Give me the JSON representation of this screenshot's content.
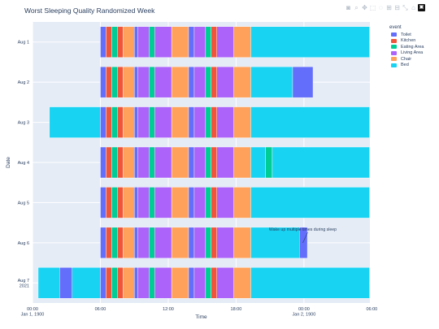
{
  "chart_data": {
    "type": "bar",
    "orientation": "horizontal-timeline",
    "title": "Worst Sleeping Quality Randomized Week",
    "xlabel": "Time",
    "ylabel": "Date",
    "xlim": [
      0,
      29.83
    ],
    "x_ticks": [
      {
        "value": 0,
        "label": "00:00",
        "sublabel": "Jan 1, 1900"
      },
      {
        "value": 6,
        "label": "06:00",
        "sublabel": ""
      },
      {
        "value": 12,
        "label": "12:00",
        "sublabel": ""
      },
      {
        "value": 18,
        "label": "18:00",
        "sublabel": ""
      },
      {
        "value": 24,
        "label": "00:00",
        "sublabel": "Jan 2, 1900"
      },
      {
        "value": 30,
        "label": "06:00",
        "sublabel": ""
      }
    ],
    "categories": [
      {
        "label": "Aug 1",
        "sublabel": ""
      },
      {
        "label": "Aug 2",
        "sublabel": ""
      },
      {
        "label": "Aug 3",
        "sublabel": ""
      },
      {
        "label": "Aug 4",
        "sublabel": ""
      },
      {
        "label": "Aug 5",
        "sublabel": ""
      },
      {
        "label": "Aug 6",
        "sublabel": ""
      },
      {
        "label": "Aug 7",
        "sublabel": "2021"
      }
    ],
    "legend": {
      "title": "event",
      "position": "top-right",
      "entries": [
        {
          "name": "Toilet",
          "color": "#636efa"
        },
        {
          "name": "Kitchen",
          "color": "#ef553b"
        },
        {
          "name": "Eating Area",
          "color": "#00cc96"
        },
        {
          "name": "Living Area",
          "color": "#ab63fa"
        },
        {
          "name": "Chair",
          "color": "#ffa15a"
        },
        {
          "name": "Bed",
          "color": "#19d3f3"
        }
      ]
    },
    "grid": true,
    "rows": [
      {
        "segments": [
          {
            "event": "Toilet",
            "start": 6.0,
            "end": 6.5
          },
          {
            "event": "Kitchen",
            "start": 6.5,
            "end": 7.0
          },
          {
            "event": "Eating Area",
            "start": 7.0,
            "end": 7.5
          },
          {
            "event": "Kitchen",
            "start": 7.5,
            "end": 8.0
          },
          {
            "event": "Chair",
            "start": 8.0,
            "end": 9.0
          },
          {
            "event": "Toilet",
            "start": 9.0,
            "end": 9.3
          },
          {
            "event": "Living Area",
            "start": 9.3,
            "end": 10.3
          },
          {
            "event": "Eating Area",
            "start": 10.3,
            "end": 10.8
          },
          {
            "event": "Living Area",
            "start": 10.8,
            "end": 12.3
          },
          {
            "event": "Chair",
            "start": 12.3,
            "end": 13.8
          },
          {
            "event": "Toilet",
            "start": 13.8,
            "end": 14.3
          },
          {
            "event": "Living Area",
            "start": 14.3,
            "end": 15.3
          },
          {
            "event": "Eating Area",
            "start": 15.3,
            "end": 15.8
          },
          {
            "event": "Kitchen",
            "start": 15.8,
            "end": 16.3
          },
          {
            "event": "Living Area",
            "start": 16.3,
            "end": 17.8
          },
          {
            "event": "Chair",
            "start": 17.8,
            "end": 19.3
          },
          {
            "event": "Bed",
            "start": 19.3,
            "end": 29.8
          }
        ]
      },
      {
        "segments": [
          {
            "event": "Toilet",
            "start": 6.0,
            "end": 6.5
          },
          {
            "event": "Kitchen",
            "start": 6.5,
            "end": 7.0
          },
          {
            "event": "Eating Area",
            "start": 7.0,
            "end": 7.5
          },
          {
            "event": "Kitchen",
            "start": 7.5,
            "end": 8.0
          },
          {
            "event": "Chair",
            "start": 8.0,
            "end": 9.0
          },
          {
            "event": "Toilet",
            "start": 9.0,
            "end": 9.3
          },
          {
            "event": "Living Area",
            "start": 9.3,
            "end": 10.3
          },
          {
            "event": "Eating Area",
            "start": 10.3,
            "end": 10.8
          },
          {
            "event": "Living Area",
            "start": 10.8,
            "end": 12.3
          },
          {
            "event": "Chair",
            "start": 12.3,
            "end": 13.8
          },
          {
            "event": "Toilet",
            "start": 13.8,
            "end": 14.3
          },
          {
            "event": "Living Area",
            "start": 14.3,
            "end": 15.3
          },
          {
            "event": "Eating Area",
            "start": 15.3,
            "end": 15.8
          },
          {
            "event": "Kitchen",
            "start": 15.8,
            "end": 16.3
          },
          {
            "event": "Living Area",
            "start": 16.3,
            "end": 17.8
          },
          {
            "event": "Chair",
            "start": 17.8,
            "end": 19.3
          },
          {
            "event": "Bed",
            "start": 19.3,
            "end": 23.0
          },
          {
            "event": "Toilet",
            "start": 23.0,
            "end": 24.8
          }
        ]
      },
      {
        "segments": [
          {
            "event": "Bed",
            "start": 1.5,
            "end": 6.0
          },
          {
            "event": "Toilet",
            "start": 6.0,
            "end": 6.5
          },
          {
            "event": "Kitchen",
            "start": 6.5,
            "end": 7.0
          },
          {
            "event": "Eating Area",
            "start": 7.0,
            "end": 7.5
          },
          {
            "event": "Kitchen",
            "start": 7.5,
            "end": 8.0
          },
          {
            "event": "Chair",
            "start": 8.0,
            "end": 9.0
          },
          {
            "event": "Toilet",
            "start": 9.0,
            "end": 9.3
          },
          {
            "event": "Living Area",
            "start": 9.3,
            "end": 10.3
          },
          {
            "event": "Eating Area",
            "start": 10.3,
            "end": 10.8
          },
          {
            "event": "Living Area",
            "start": 10.8,
            "end": 12.3
          },
          {
            "event": "Chair",
            "start": 12.3,
            "end": 13.8
          },
          {
            "event": "Toilet",
            "start": 13.8,
            "end": 14.3
          },
          {
            "event": "Living Area",
            "start": 14.3,
            "end": 15.3
          },
          {
            "event": "Eating Area",
            "start": 15.3,
            "end": 15.8
          },
          {
            "event": "Kitchen",
            "start": 15.8,
            "end": 16.3
          },
          {
            "event": "Living Area",
            "start": 16.3,
            "end": 17.8
          },
          {
            "event": "Chair",
            "start": 17.8,
            "end": 19.3
          },
          {
            "event": "Bed",
            "start": 19.3,
            "end": 29.8
          }
        ]
      },
      {
        "segments": [
          {
            "event": "Toilet",
            "start": 6.0,
            "end": 6.5
          },
          {
            "event": "Kitchen",
            "start": 6.5,
            "end": 7.0
          },
          {
            "event": "Eating Area",
            "start": 7.0,
            "end": 7.5
          },
          {
            "event": "Kitchen",
            "start": 7.5,
            "end": 8.0
          },
          {
            "event": "Chair",
            "start": 8.0,
            "end": 9.0
          },
          {
            "event": "Toilet",
            "start": 9.0,
            "end": 9.3
          },
          {
            "event": "Living Area",
            "start": 9.3,
            "end": 10.3
          },
          {
            "event": "Eating Area",
            "start": 10.3,
            "end": 10.8
          },
          {
            "event": "Living Area",
            "start": 10.8,
            "end": 12.3
          },
          {
            "event": "Chair",
            "start": 12.3,
            "end": 13.8
          },
          {
            "event": "Toilet",
            "start": 13.8,
            "end": 14.3
          },
          {
            "event": "Living Area",
            "start": 14.3,
            "end": 15.3
          },
          {
            "event": "Eating Area",
            "start": 15.3,
            "end": 15.8
          },
          {
            "event": "Kitchen",
            "start": 15.8,
            "end": 16.3
          },
          {
            "event": "Living Area",
            "start": 16.3,
            "end": 17.8
          },
          {
            "event": "Chair",
            "start": 17.8,
            "end": 19.3
          },
          {
            "event": "Bed",
            "start": 19.3,
            "end": 20.6
          },
          {
            "event": "Eating Area",
            "start": 20.6,
            "end": 21.2
          },
          {
            "event": "Bed",
            "start": 21.2,
            "end": 29.8
          }
        ]
      },
      {
        "segments": [
          {
            "event": "Toilet",
            "start": 6.0,
            "end": 6.5
          },
          {
            "event": "Kitchen",
            "start": 6.5,
            "end": 7.0
          },
          {
            "event": "Eating Area",
            "start": 7.0,
            "end": 7.5
          },
          {
            "event": "Kitchen",
            "start": 7.5,
            "end": 8.0
          },
          {
            "event": "Chair",
            "start": 8.0,
            "end": 9.0
          },
          {
            "event": "Toilet",
            "start": 9.0,
            "end": 9.3
          },
          {
            "event": "Living Area",
            "start": 9.3,
            "end": 10.3
          },
          {
            "event": "Eating Area",
            "start": 10.3,
            "end": 10.8
          },
          {
            "event": "Living Area",
            "start": 10.8,
            "end": 12.3
          },
          {
            "event": "Chair",
            "start": 12.3,
            "end": 13.8
          },
          {
            "event": "Toilet",
            "start": 13.8,
            "end": 14.3
          },
          {
            "event": "Living Area",
            "start": 14.3,
            "end": 15.3
          },
          {
            "event": "Eating Area",
            "start": 15.3,
            "end": 15.8
          },
          {
            "event": "Kitchen",
            "start": 15.8,
            "end": 16.3
          },
          {
            "event": "Living Area",
            "start": 16.3,
            "end": 17.8
          },
          {
            "event": "Chair",
            "start": 17.8,
            "end": 19.3
          },
          {
            "event": "Bed",
            "start": 19.3,
            "end": 29.8
          }
        ]
      },
      {
        "segments": [
          {
            "event": "Toilet",
            "start": 6.0,
            "end": 6.5
          },
          {
            "event": "Kitchen",
            "start": 6.5,
            "end": 7.0
          },
          {
            "event": "Eating Area",
            "start": 7.0,
            "end": 7.5
          },
          {
            "event": "Kitchen",
            "start": 7.5,
            "end": 8.0
          },
          {
            "event": "Chair",
            "start": 8.0,
            "end": 9.0
          },
          {
            "event": "Toilet",
            "start": 9.0,
            "end": 9.3
          },
          {
            "event": "Living Area",
            "start": 9.3,
            "end": 10.3
          },
          {
            "event": "Eating Area",
            "start": 10.3,
            "end": 10.8
          },
          {
            "event": "Living Area",
            "start": 10.8,
            "end": 12.3
          },
          {
            "event": "Chair",
            "start": 12.3,
            "end": 13.8
          },
          {
            "event": "Toilet",
            "start": 13.8,
            "end": 14.3
          },
          {
            "event": "Living Area",
            "start": 14.3,
            "end": 15.3
          },
          {
            "event": "Eating Area",
            "start": 15.3,
            "end": 15.8
          },
          {
            "event": "Kitchen",
            "start": 15.8,
            "end": 16.3
          },
          {
            "event": "Living Area",
            "start": 16.3,
            "end": 17.8
          },
          {
            "event": "Chair",
            "start": 17.8,
            "end": 19.3
          },
          {
            "event": "Bed",
            "start": 19.3,
            "end": 23.6
          },
          {
            "event": "Toilet",
            "start": 23.6,
            "end": 24.3
          }
        ]
      },
      {
        "segments": [
          {
            "event": "Bed",
            "start": 0.5,
            "end": 2.4
          },
          {
            "event": "Toilet",
            "start": 2.4,
            "end": 3.5
          },
          {
            "event": "Bed",
            "start": 3.5,
            "end": 6.0
          },
          {
            "event": "Toilet",
            "start": 6.0,
            "end": 6.5
          },
          {
            "event": "Kitchen",
            "start": 6.5,
            "end": 7.0
          },
          {
            "event": "Eating Area",
            "start": 7.0,
            "end": 7.5
          },
          {
            "event": "Kitchen",
            "start": 7.5,
            "end": 8.0
          },
          {
            "event": "Chair",
            "start": 8.0,
            "end": 9.0
          },
          {
            "event": "Toilet",
            "start": 9.0,
            "end": 9.3
          },
          {
            "event": "Living Area",
            "start": 9.3,
            "end": 10.3
          },
          {
            "event": "Eating Area",
            "start": 10.3,
            "end": 10.8
          },
          {
            "event": "Living Area",
            "start": 10.8,
            "end": 12.3
          },
          {
            "event": "Chair",
            "start": 12.3,
            "end": 13.8
          },
          {
            "event": "Toilet",
            "start": 13.8,
            "end": 14.3
          },
          {
            "event": "Living Area",
            "start": 14.3,
            "end": 15.3
          },
          {
            "event": "Eating Area",
            "start": 15.3,
            "end": 15.8
          },
          {
            "event": "Kitchen",
            "start": 15.8,
            "end": 16.3
          },
          {
            "event": "Living Area",
            "start": 16.3,
            "end": 17.8
          },
          {
            "event": "Chair",
            "start": 17.8,
            "end": 19.3
          },
          {
            "event": "Bed",
            "start": 19.3,
            "end": 29.8
          }
        ]
      }
    ],
    "annotations": [
      {
        "text": "Wake up multiple times during sleep",
        "row": 5,
        "x": 23.9
      }
    ]
  },
  "modebar": {
    "icons": [
      {
        "name": "camera-icon",
        "glyph": "◙"
      },
      {
        "name": "zoom-icon",
        "glyph": "⌕"
      },
      {
        "name": "pan-icon",
        "glyph": "✥"
      },
      {
        "name": "box-select-icon",
        "glyph": "⬚"
      },
      {
        "name": "lasso-select-icon",
        "glyph": "◌"
      },
      {
        "name": "zoom-in-icon",
        "glyph": "⊞"
      },
      {
        "name": "zoom-out-icon",
        "glyph": "⊟"
      },
      {
        "name": "autoscale-icon",
        "glyph": "⤡"
      },
      {
        "name": "reset-axes-icon",
        "glyph": "⌂"
      },
      {
        "name": "plotly-logo-icon",
        "glyph": "▣"
      }
    ]
  }
}
